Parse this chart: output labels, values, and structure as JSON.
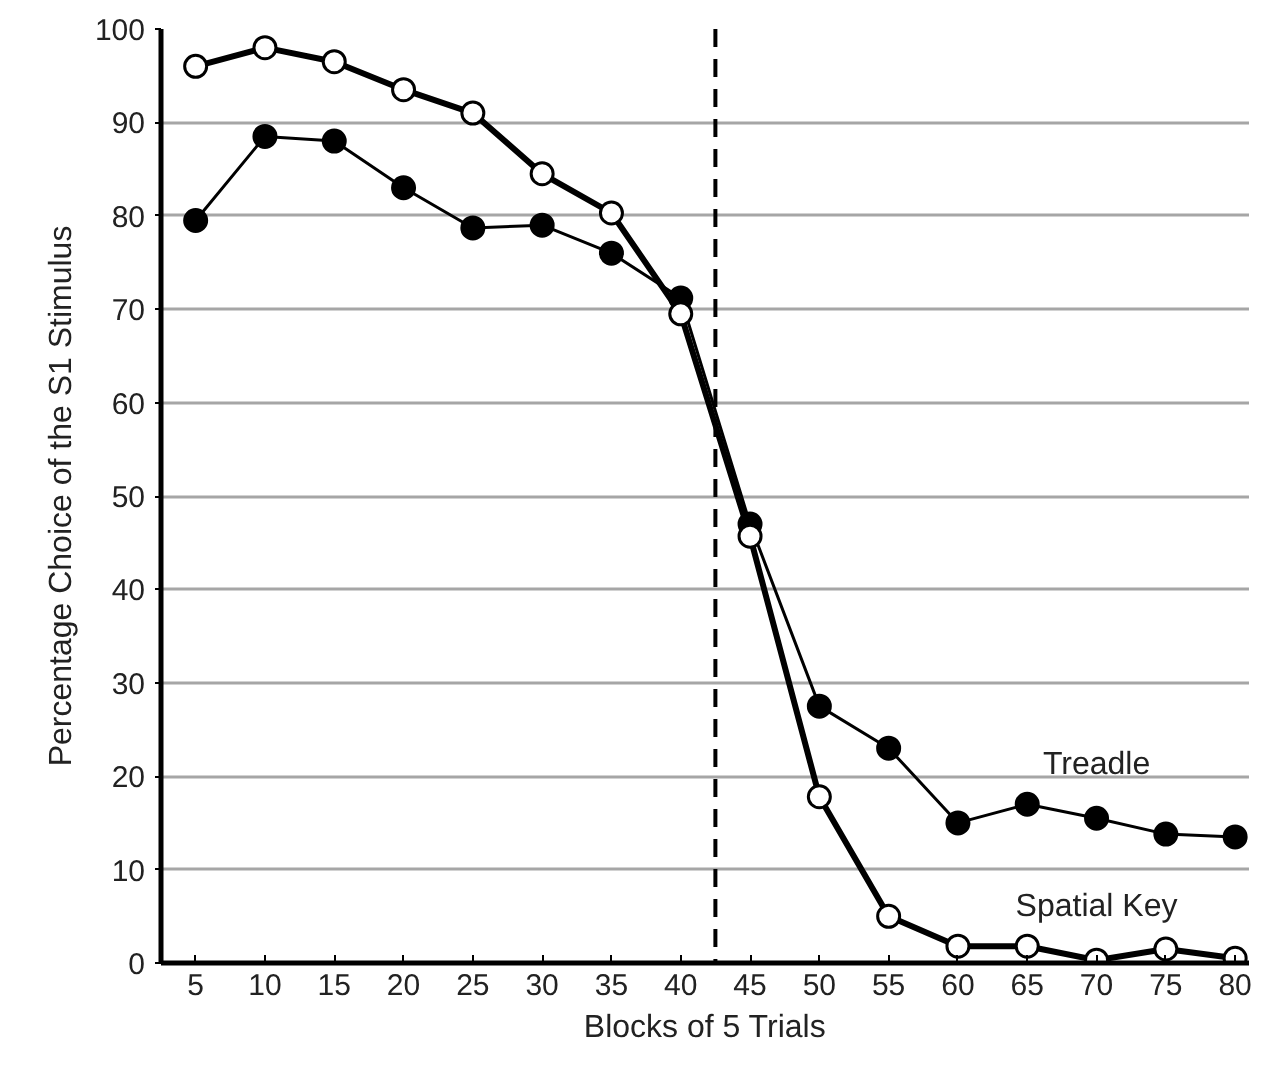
{
  "chart_data": {
    "type": "line",
    "xlabel": "Blocks of 5 Trials",
    "ylabel": "Percentage Choice of the S1 Stimulus",
    "x": [
      5,
      10,
      15,
      20,
      25,
      30,
      35,
      40,
      45,
      50,
      55,
      60,
      65,
      70,
      75,
      80
    ],
    "series": [
      {
        "name": "Treadle",
        "color": "#000000",
        "values": [
          79.5,
          88.5,
          88,
          83,
          78.7,
          79,
          76,
          71.2,
          47,
          27.5,
          23,
          15,
          17,
          15.5,
          13.8,
          13.5
        ]
      },
      {
        "name": "Spatial Key",
        "color": "#000000",
        "values": [
          96,
          98,
          96.5,
          93.5,
          91,
          84.5,
          80.3,
          69.5,
          45.7,
          17.8,
          5,
          1.8,
          1.8,
          0.3,
          1.5,
          0.5
        ]
      }
    ],
    "xlim": [
      2.5,
      81
    ],
    "ylim": [
      0,
      100
    ],
    "xticks": [
      5,
      10,
      15,
      20,
      25,
      30,
      35,
      40,
      45,
      50,
      55,
      60,
      65,
      70,
      75,
      80
    ],
    "yticks": [
      0,
      10,
      20,
      30,
      40,
      50,
      60,
      70,
      80,
      90,
      100
    ],
    "ref_lines": [
      {
        "axis": "x",
        "value": 42.5,
        "color": "#000000",
        "line_style": "dashed"
      }
    ],
    "grid": "y",
    "marker": "circle",
    "line_style": "solid"
  }
}
